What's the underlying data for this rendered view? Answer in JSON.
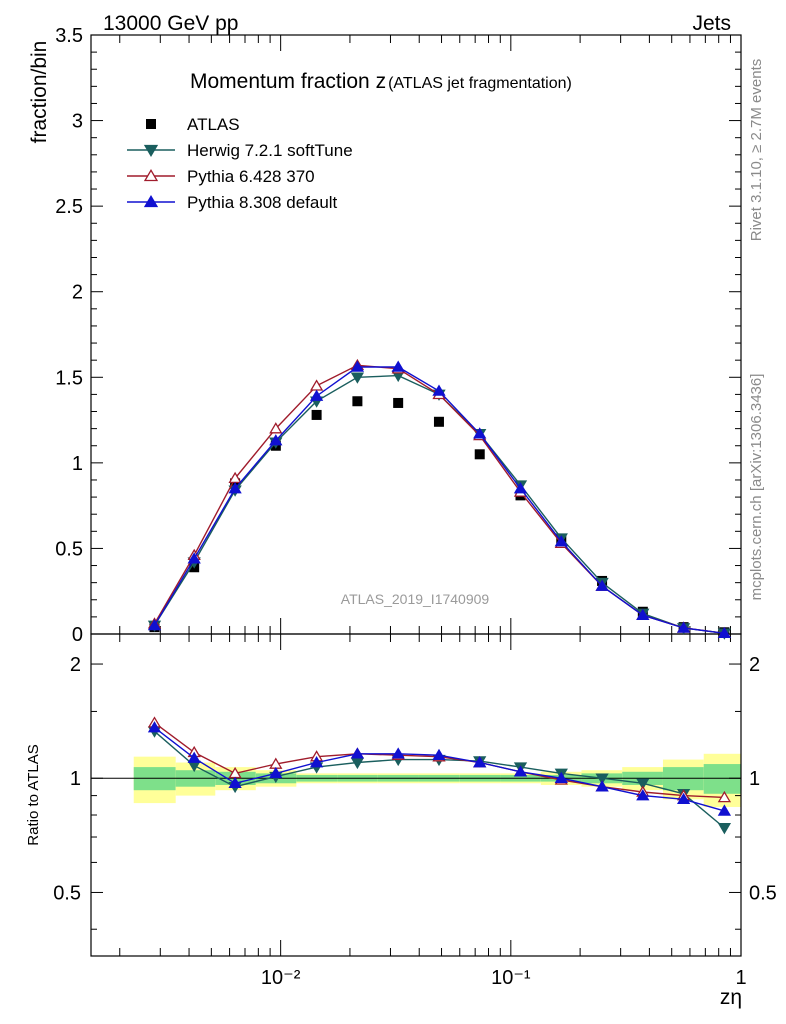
{
  "header": {
    "energy": "13000 GeV pp",
    "category": "Jets"
  },
  "side_labels": {
    "rivet": "Rivet 3.1.10, ≥ 2.7M events",
    "mcplots": "mcplots.cern.ch [arXiv:1306.3436]"
  },
  "chart_data": {
    "type": "line",
    "title": "Momentum fraction z",
    "title_sub": "(ATLAS jet fragmentation)",
    "analysis_label": "ATLAS_2019_I1740909",
    "xlabel": "zη",
    "ylabel": "fraction/bin",
    "ratio_ylabel": "Ratio to ATLAS",
    "xscale": "log",
    "xlim": [
      0.0015,
      1.0
    ],
    "ylim": [
      0,
      3.5
    ],
    "ratio_ylim": [
      0.34,
      2.4
    ],
    "x_tick_labels": [
      "10⁻²",
      "10⁻¹",
      "1"
    ],
    "x_tick_values": [
      0.01,
      0.1,
      1
    ],
    "y_tick_labels": [
      "0",
      "0.5",
      "1",
      "1.5",
      "2",
      "2.5",
      "3",
      "3.5"
    ],
    "y_tick_values": [
      0,
      0.5,
      1,
      1.5,
      2,
      2.5,
      3,
      3.5
    ],
    "ratio_tick_labels": [
      "0.5",
      "1",
      "2"
    ],
    "ratio_tick_values": [
      0.5,
      1,
      2
    ],
    "legend_position": "top-left",
    "x": [
      0.00283,
      0.00421,
      0.00634,
      0.00953,
      0.01433,
      0.02155,
      0.0324,
      0.04873,
      0.07327,
      0.11017,
      0.16566,
      0.24909,
      0.37453,
      0.56314,
      0.8467
    ],
    "series": [
      {
        "name": "ATLAS",
        "color": "#000000",
        "marker": "square",
        "values": [
          0.04,
          0.39,
          0.88,
          1.1,
          1.28,
          1.36,
          1.35,
          1.24,
          1.05,
          0.81,
          0.55,
          0.31,
          0.13,
          0.04,
          0.01
        ]
      },
      {
        "name": "Herwig 7.2.1 softTune",
        "color": "#1a5e5e",
        "marker": "triangle-down",
        "values": [
          0.05,
          0.42,
          0.84,
          1.12,
          1.36,
          1.5,
          1.51,
          1.4,
          1.17,
          0.87,
          0.56,
          0.3,
          0.12,
          0.035,
          0.004
        ],
        "ratio": [
          1.33,
          1.08,
          0.95,
          1.01,
          1.07,
          1.1,
          1.12,
          1.12,
          1.11,
          1.07,
          1.03,
          1.0,
          0.97,
          0.91,
          0.74
        ]
      },
      {
        "name": "Pythia 6.428 370",
        "color": "#a01c2c",
        "marker": "triangle-up-open",
        "values": [
          0.06,
          0.46,
          0.91,
          1.2,
          1.45,
          1.57,
          1.55,
          1.4,
          1.16,
          0.83,
          0.53,
          0.28,
          0.11,
          0.036,
          0.004
        ],
        "ratio": [
          1.4,
          1.17,
          1.03,
          1.09,
          1.14,
          1.16,
          1.15,
          1.14,
          1.1,
          1.04,
          0.99,
          0.95,
          0.92,
          0.9,
          0.89
        ]
      },
      {
        "name": "Pythia 8.308 default",
        "color": "#1010d0",
        "marker": "triangle-up",
        "values": [
          0.05,
          0.44,
          0.85,
          1.13,
          1.39,
          1.56,
          1.56,
          1.42,
          1.17,
          0.85,
          0.54,
          0.28,
          0.11,
          0.035,
          0.004
        ],
        "ratio": [
          1.36,
          1.13,
          0.97,
          1.03,
          1.1,
          1.16,
          1.16,
          1.15,
          1.1,
          1.04,
          1.0,
          0.95,
          0.9,
          0.88,
          0.82
        ]
      }
    ],
    "ratio_bands": {
      "bin_edges": [
        0.0023,
        0.0035,
        0.0052,
        0.0078,
        0.0117,
        0.0176,
        0.0264,
        0.0397,
        0.0597,
        0.0898,
        0.135,
        0.2027,
        0.3048,
        0.4581,
        0.6887,
        1.0
      ],
      "green_half_width": [
        0.07,
        0.05,
        0.04,
        0.03,
        0.02,
        0.02,
        0.02,
        0.02,
        0.02,
        0.02,
        0.02,
        0.03,
        0.04,
        0.07,
        0.09
      ],
      "yellow_half_width": [
        0.14,
        0.1,
        0.07,
        0.05,
        0.03,
        0.03,
        0.03,
        0.03,
        0.03,
        0.03,
        0.04,
        0.05,
        0.07,
        0.12,
        0.16
      ],
      "green_color": "#7ee08a",
      "yellow_color": "#ffff99"
    }
  }
}
